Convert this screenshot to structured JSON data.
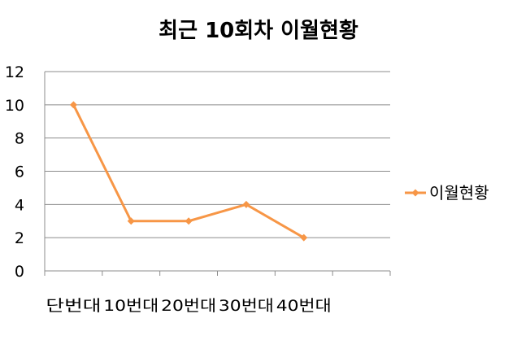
{
  "chart_data": {
    "type": "line",
    "title": "최근 10회차 이월현황",
    "xlabel": "",
    "ylabel": "",
    "categories": [
      "단번대",
      "10번대",
      "20번대",
      "30번대",
      "40번대",
      ""
    ],
    "series": [
      {
        "name": "이월현황",
        "values": [
          10,
          3,
          3,
          4,
          2,
          null
        ],
        "color": "#f79646"
      }
    ],
    "ylim": [
      0,
      12
    ],
    "yticks": [
      0,
      2,
      4,
      6,
      8,
      10,
      12
    ],
    "grid": true,
    "legend": "right"
  }
}
